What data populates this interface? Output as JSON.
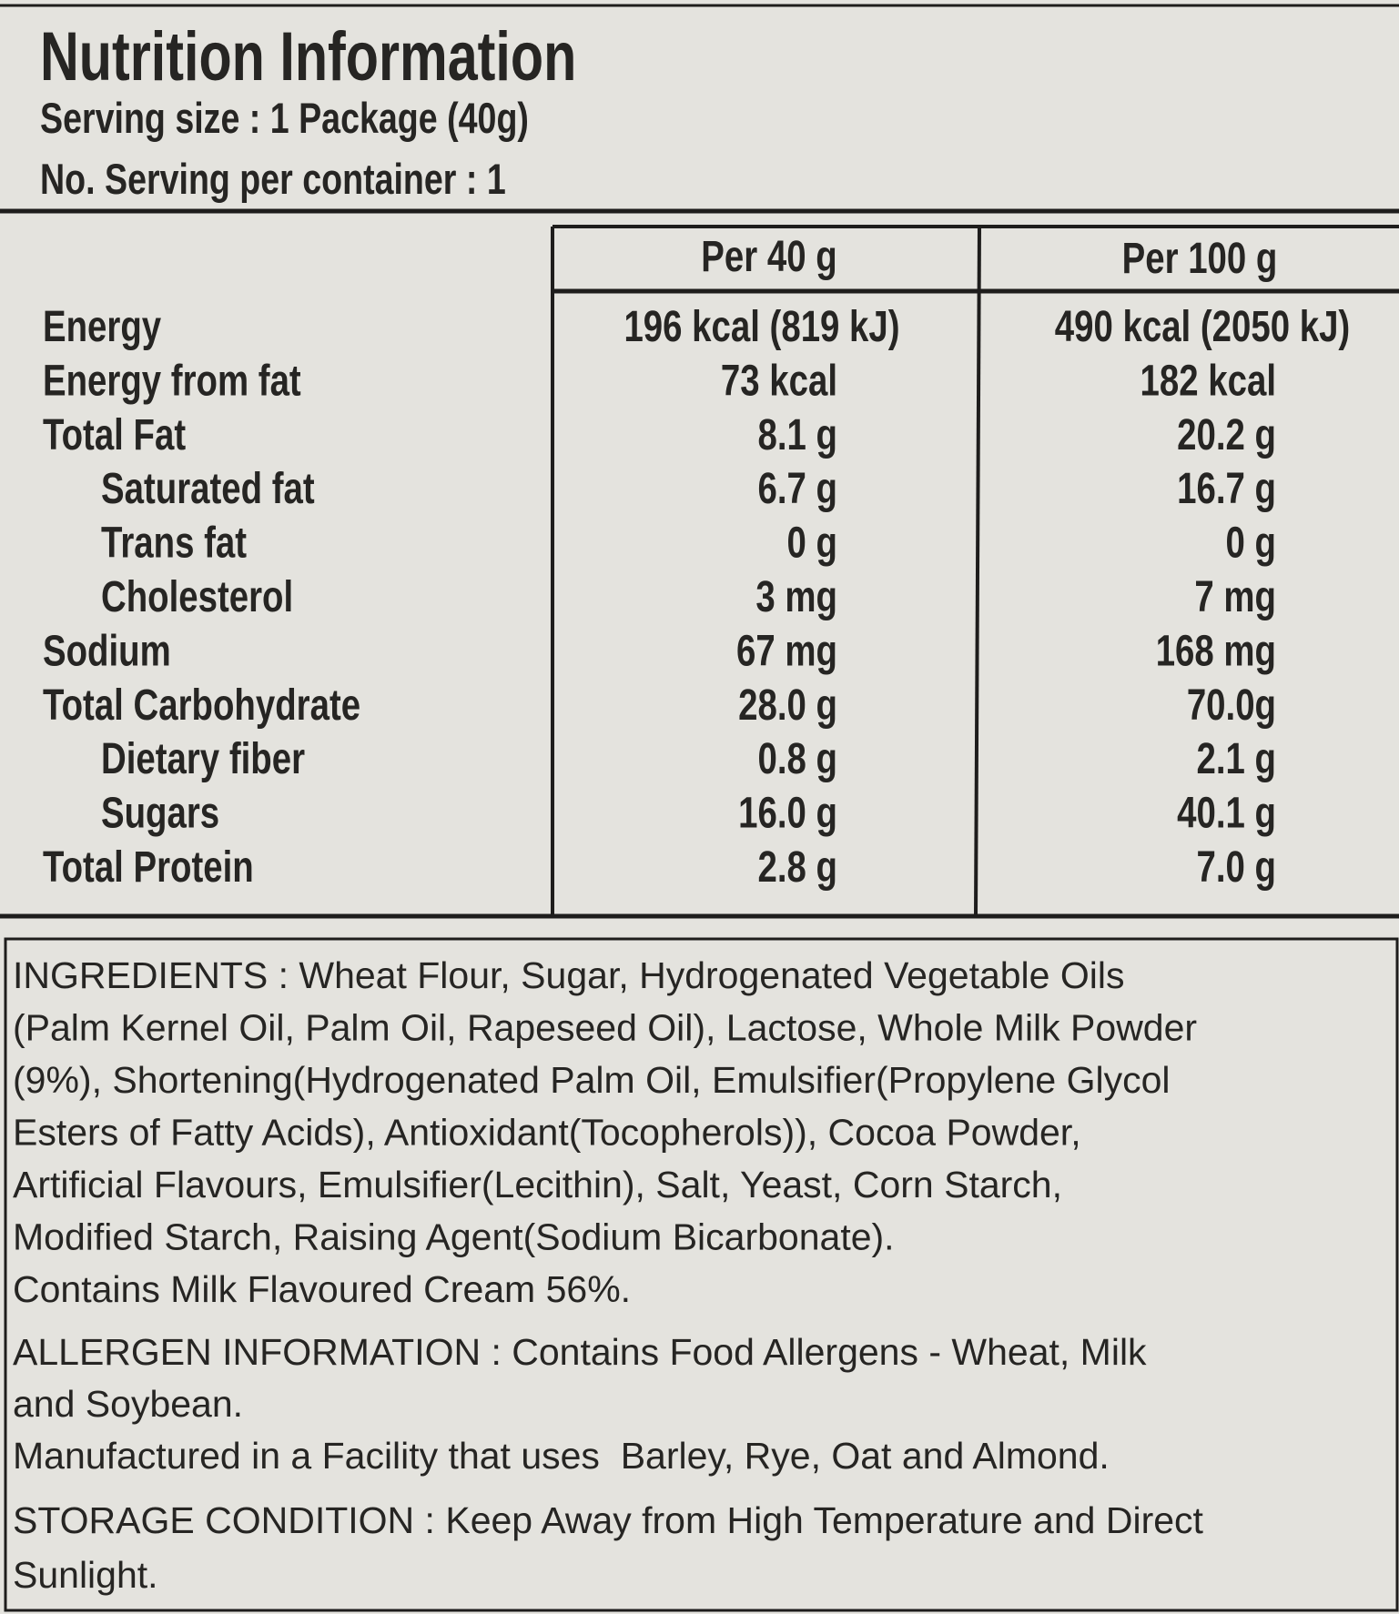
{
  "header": {
    "title": "Nutrition Information",
    "serving_size": "Serving size : 1 Package (40g)",
    "servings": "No. Serving per container : 1"
  },
  "table": {
    "columns": [
      "Per 40 g",
      "Per 100 g"
    ],
    "rows": [
      [
        "Energy",
        "196 kcal (819 kJ)",
        "490 kcal (2050 kJ)"
      ],
      [
        "Energy from fat",
        "73 kcal",
        "182 kcal"
      ],
      [
        "Total Fat",
        "8.1 g",
        "20.2 g"
      ],
      [
        "Saturated fat",
        "6.7 g",
        "16.7 g"
      ],
      [
        "Trans fat",
        "0 g",
        "0 g"
      ],
      [
        "Cholesterol",
        "3 mg",
        "7 mg"
      ],
      [
        "Sodium",
        "67 mg",
        "168 mg"
      ],
      [
        "Total Carbohydrate",
        "28.0 g",
        "70.0g"
      ],
      [
        "Dietary fiber",
        "0.8 g",
        "2.1 g"
      ],
      [
        "Sugars",
        "16.0 g",
        "40.1 g"
      ],
      [
        "Total Protein",
        "2.8 g",
        "7.0 g"
      ]
    ]
  },
  "ingredients": [
    "INGREDIENTS : Wheat Flour, Sugar, Hydrogenated Vegetable Oils",
    "(Palm Kernel Oil, Palm Oil, Rapeseed Oil), Lactose, Whole Milk Powder",
    "(9%), Shortening(Hydrogenated Palm Oil, Emulsifier(Propylene Glycol",
    "Esters of Fatty Acids), Antioxidant(Tocopherols)), Cocoa Powder,",
    "Artificial Flavours, Emulsifier(Lecithin), Salt, Yeast, Corn Starch,",
    "Modified Starch, Raising Agent(Sodium Bicarbonate).",
    "Contains Milk Flavoured Cream 56%."
  ],
  "allergen": [
    "ALLERGEN INFORMATION : Contains Food Allergens - Wheat, Milk",
    "and Soybean.",
    "Manufactured in a Facility that uses  Barley, Rye, Oat and Almond."
  ],
  "storage": [
    "STORAGE CONDITION : Keep Away from High Temperature and Direct",
    "Sunlight."
  ]
}
